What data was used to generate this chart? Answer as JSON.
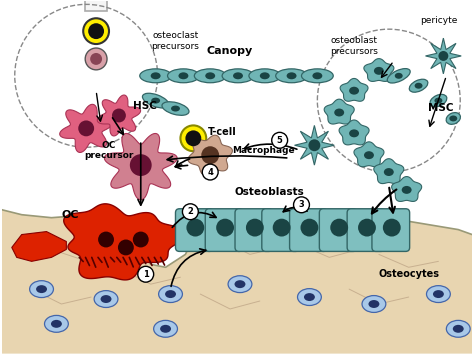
{
  "bg_color": "#ffffff",
  "bone_color": "#e8d5b0",
  "bone_dark": "#c8b090",
  "osteoblast_color": "#7fbfbf",
  "osteoblast_dark": "#336666",
  "osteoclast_color": "#dd2200",
  "hsc_color": "#e06080",
  "osteocyte_color": "#a8c8e8",
  "osteocyte_nucleus": "#223366",
  "canopy_cell_color": "#70b5b5",
  "macrophage_color": "#d0a890",
  "precursor_color": "#d08090",
  "msc_color": "#70b5b5",
  "tcell_yellow": "#ffee00",
  "vessel_color": "#f5f5f5",
  "vessel_border": "#aaaaaa",
  "labels": {
    "osteoclast_precursors": "osteoclast\nprecursors",
    "osteoblast_precursors": "osteoblast\nprecursors",
    "pericyte": "pericyte",
    "hsc": "HSC",
    "canopy": "Canopy",
    "t_cell": "T-cell",
    "macrophage": "Macrophage",
    "oc_precursor": "OC\nprecursor",
    "oc": "OC",
    "osteoblasts": "Osteoblasts",
    "msc": "MSC",
    "osteocytes": "Osteocytes"
  }
}
